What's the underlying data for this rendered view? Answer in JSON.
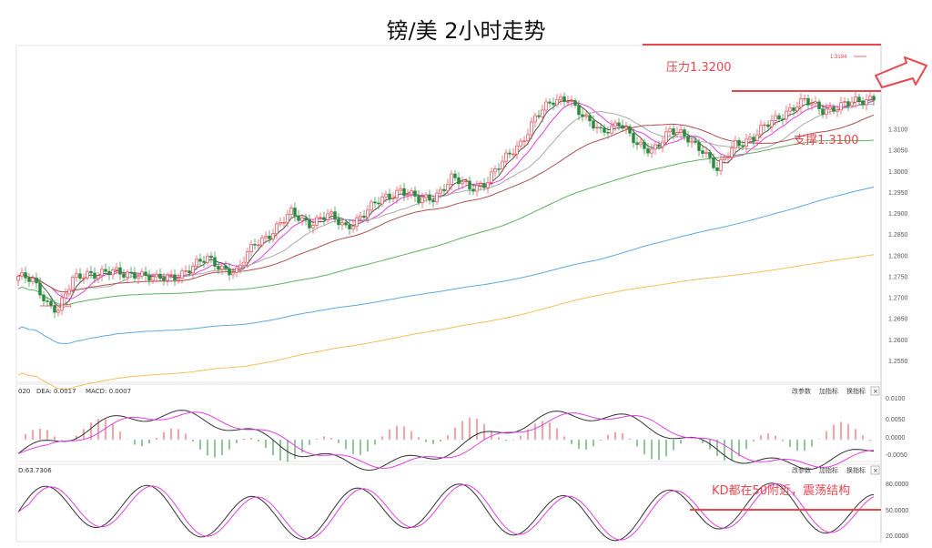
{
  "chart_data": {
    "type": "candlestick",
    "title": "镑/美 2小时走势",
    "main": {
      "ylim": [
        1.25,
        1.33
      ],
      "yticks": [
        "1.3100",
        "1.3050",
        "1.3000",
        "1.2950",
        "1.2900",
        "1.2850",
        "1.2800",
        "1.2750",
        "1.2700",
        "1.2650",
        "1.2600",
        "1.2550"
      ],
      "y_tick_values": [
        1.31,
        1.305,
        1.3,
        1.295,
        1.29,
        1.285,
        1.28,
        1.275,
        1.27,
        1.265,
        1.26,
        1.255
      ],
      "close_path": [
        [
          0,
          1.2752
        ],
        [
          4,
          1.2738
        ],
        [
          8,
          1.269
        ],
        [
          11,
          1.2675
        ],
        [
          15,
          1.274
        ],
        [
          19,
          1.276
        ],
        [
          24,
          1.2762
        ],
        [
          29,
          1.2755
        ],
        [
          33,
          1.2762
        ],
        [
          38,
          1.2742
        ],
        [
          42,
          1.275
        ],
        [
          47,
          1.277
        ],
        [
          52,
          1.2792
        ],
        [
          56,
          1.2775
        ],
        [
          60,
          1.276
        ],
        [
          65,
          1.283
        ],
        [
          70,
          1.286
        ],
        [
          75,
          1.29
        ],
        [
          80,
          1.288
        ],
        [
          85,
          1.2895
        ],
        [
          90,
          1.287
        ],
        [
          95,
          1.29
        ],
        [
          100,
          1.2935
        ],
        [
          105,
          1.296
        ],
        [
          110,
          1.293
        ],
        [
          114,
          1.294
        ],
        [
          119,
          1.2985
        ],
        [
          124,
          1.296
        ],
        [
          128,
          1.2975
        ],
        [
          133,
          1.302
        ],
        [
          138,
          1.307
        ],
        [
          142,
          1.313
        ],
        [
          147,
          1.3165
        ],
        [
          151,
          1.318
        ],
        [
          156,
          1.312
        ],
        [
          160,
          1.3095
        ],
        [
          165,
          1.312
        ],
        [
          170,
          1.306
        ],
        [
          174,
          1.3055
        ],
        [
          179,
          1.3095
        ],
        [
          184,
          1.308
        ],
        [
          188,
          1.3055
        ],
        [
          192,
          1.3
        ],
        [
          197,
          1.307
        ],
        [
          202,
          1.308
        ],
        [
          207,
          1.312
        ],
        [
          211,
          1.3145
        ],
        [
          216,
          1.3165
        ],
        [
          221,
          1.315
        ],
        [
          226,
          1.3155
        ],
        [
          230,
          1.3165
        ],
        [
          235,
          1.318
        ]
      ],
      "low_marker": {
        "label": "1.2644"
      },
      "high_marker": {
        "label": "1.3194"
      },
      "annotations": [
        {
          "text": "压力1.3200",
          "y": 1.32
        },
        {
          "text": "支撑1.3100",
          "y": 1.31
        }
      ],
      "ma_colors": [
        "#555555",
        "#e040e0",
        "#aaaaaa",
        "#b05050",
        "#60b060",
        "#60a8e0",
        "#f5c060"
      ]
    },
    "macd": {
      "label_prefix": "020",
      "dea_label": "DEA: 0.0017",
      "macd_label": "MACD: 0.0007",
      "yticks": [
        "0.0100",
        "0.0050",
        "0.0000",
        "-0.0050"
      ],
      "buttons": [
        "改参数",
        "加指标",
        "换指标"
      ]
    },
    "kd": {
      "label": "D:63.7306",
      "yticks": [
        "80.0000",
        "50.0000",
        "20.0000"
      ],
      "annotation": "KD都在50附近，震荡结构",
      "reference_level": 50,
      "buttons": [
        "改参数",
        "加指标",
        "换指标"
      ]
    }
  }
}
